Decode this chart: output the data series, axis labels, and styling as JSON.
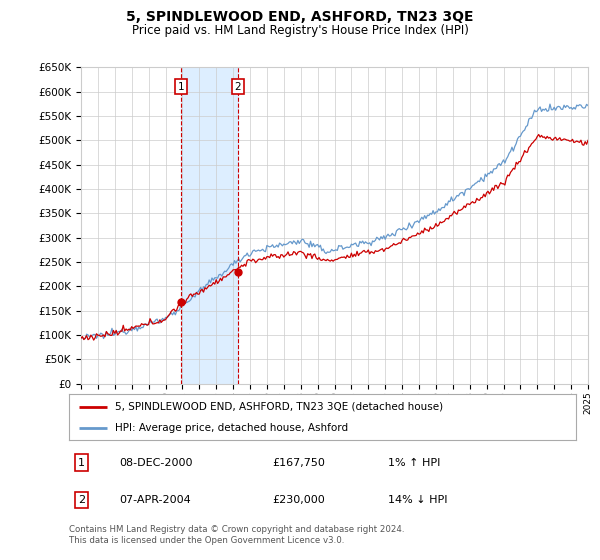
{
  "title": "5, SPINDLEWOOD END, ASHFORD, TN23 3QE",
  "subtitle": "Price paid vs. HM Land Registry's House Price Index (HPI)",
  "ylabel_ticks": [
    "£0",
    "£50K",
    "£100K",
    "£150K",
    "£200K",
    "£250K",
    "£300K",
    "£350K",
    "£400K",
    "£450K",
    "£500K",
    "£550K",
    "£600K",
    "£650K"
  ],
  "ytick_values": [
    0,
    50000,
    100000,
    150000,
    200000,
    250000,
    300000,
    350000,
    400000,
    450000,
    500000,
    550000,
    600000,
    650000
  ],
  "x_start_year": 1995,
  "x_end_year": 2025,
  "marker1_year": 2000.92,
  "marker1_value": 167750,
  "marker1_label": "1",
  "marker1_date": "08-DEC-2000",
  "marker1_price": "£167,750",
  "marker1_hpi": "1% ↑ HPI",
  "marker2_year": 2004.27,
  "marker2_value": 230000,
  "marker2_label": "2",
  "marker2_date": "07-APR-2004",
  "marker2_price": "£230,000",
  "marker2_hpi": "14% ↓ HPI",
  "property_label": "5, SPINDLEWOOD END, ASHFORD, TN23 3QE (detached house)",
  "hpi_label": "HPI: Average price, detached house, Ashford",
  "footer": "Contains HM Land Registry data © Crown copyright and database right 2024.\nThis data is licensed under the Open Government Licence v3.0.",
  "line_color_property": "#cc0000",
  "line_color_hpi": "#6699cc",
  "highlight_color": "#ddeeff",
  "background_color": "#ffffff",
  "grid_color": "#cccccc"
}
